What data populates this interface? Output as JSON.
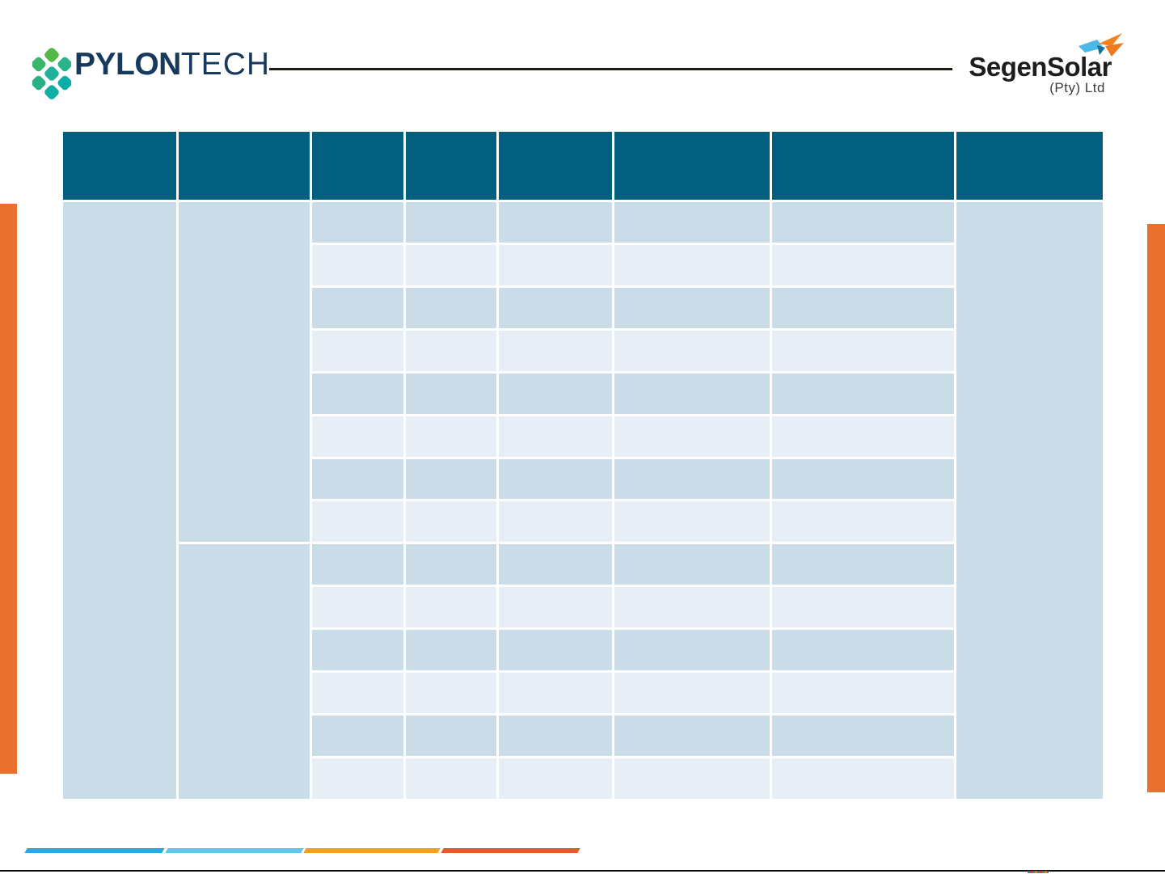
{
  "header": {
    "pylontech": {
      "brand_bold": "PYLON",
      "brand_light": "TECH",
      "text_color": "#17395E",
      "icon_colors": [
        "#55B948",
        "#3BB56B",
        "#2AB38D",
        "#1EB29B",
        "#27B184",
        "#0CADA8",
        "#12AEA3"
      ]
    },
    "divider_color": "#1b1b12",
    "segensolar": {
      "name": "SegenSolar",
      "subtitle": "(Pty) Ltd",
      "text_color": "#1d1d1b",
      "icon_colors": {
        "light_blue": "#4BB8E5",
        "orange": "#F08221",
        "dark_teal": "#1A6F95"
      }
    }
  },
  "table": {
    "columns": 8,
    "body_rows": 14,
    "col2_upper_rowspan": 8,
    "header_color": "#02607E",
    "row_color_dark": "#CBDCE9",
    "row_color_light": "#E8EEF5",
    "header_cells": [
      "",
      "",
      "",
      "",
      "",
      "",
      "",
      ""
    ]
  },
  "side_bars": {
    "color": "#E9702E"
  },
  "footer": {
    "bars": [
      {
        "color": "#29A9E0"
      },
      {
        "color": "#63C5E9"
      },
      {
        "color": "#F2A024"
      },
      {
        "color": "#E4592C"
      }
    ],
    "line_color": "#0c0c0c"
  }
}
